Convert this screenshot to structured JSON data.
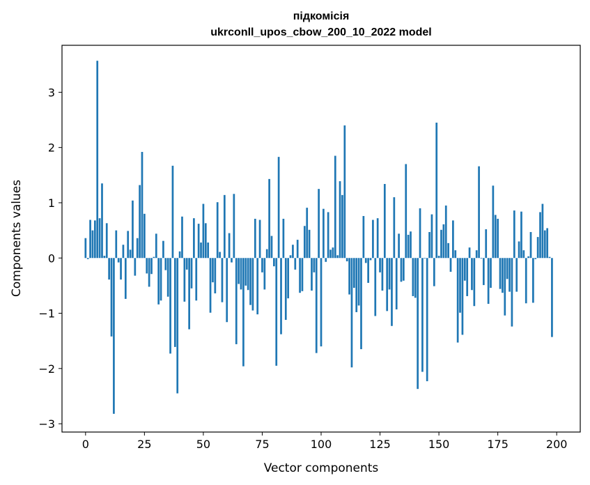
{
  "chart_data": {
    "type": "bar",
    "title_line1": "підкомісія",
    "title_line2": "ukrconll_upos_cbow_200_10_2022 model",
    "xlabel": "Vector components",
    "ylabel": "Components values",
    "xlim": [
      -10,
      210
    ],
    "ylim": [
      -3.15,
      3.85
    ],
    "xticks": [
      0,
      25,
      50,
      75,
      100,
      125,
      150,
      175,
      200
    ],
    "yticks": [
      -3,
      -2,
      -1,
      0,
      1,
      2,
      3
    ],
    "ytick_labels": [
      "−3",
      "−2",
      "−1",
      "0",
      "1",
      "2",
      "3"
    ],
    "bar_color": "#1f77b4",
    "grid": false,
    "values": [
      0.36,
      -0.02,
      0.69,
      0.5,
      0.68,
      3.57,
      0.72,
      1.35,
      0.04,
      0.63,
      -0.39,
      -1.42,
      -2.82,
      0.5,
      -0.08,
      -0.39,
      0.24,
      -0.74,
      0.49,
      0.15,
      1.04,
      -0.32,
      0.36,
      1.32,
      1.92,
      0.8,
      -0.28,
      -0.52,
      -0.29,
      0.02,
      0.44,
      -0.84,
      -0.77,
      0.31,
      -0.22,
      -0.7,
      -1.73,
      1.67,
      -1.61,
      -2.45,
      0.12,
      0.75,
      -0.79,
      -0.21,
      -1.29,
      -0.55,
      0.72,
      -0.77,
      0.62,
      0.28,
      0.98,
      0.63,
      0.28,
      -0.99,
      -0.44,
      -0.64,
      1.01,
      0.11,
      -0.8,
      1.14,
      -1.16,
      0.45,
      -0.08,
      1.16,
      -1.56,
      -0.47,
      -0.57,
      -1.96,
      -0.5,
      -0.58,
      -0.85,
      -0.95,
      0.71,
      -1.02,
      0.69,
      -0.26,
      -0.57,
      0.16,
      1.43,
      0.4,
      -0.15,
      -1.95,
      1.83,
      -1.38,
      0.71,
      -1.12,
      -0.73,
      0.05,
      0.24,
      -0.21,
      0.33,
      -0.63,
      -0.6,
      0.58,
      0.91,
      0.51,
      -0.59,
      -0.26,
      -1.72,
      1.25,
      -1.6,
      0.89,
      -0.07,
      0.83,
      0.15,
      0.19,
      1.85,
      0.05,
      1.39,
      1.14,
      2.4,
      -0.06,
      -0.66,
      -1.98,
      -0.54,
      -0.98,
      -0.86,
      -1.65,
      0.76,
      -0.09,
      -0.45,
      -0.04,
      0.69,
      -1.05,
      0.72,
      -0.26,
      -0.59,
      1.34,
      -0.96,
      -0.57,
      -1.23,
      1.1,
      -0.93,
      0.44,
      -0.43,
      -0.41,
      1.7,
      0.42,
      0.48,
      -0.69,
      -0.72,
      -2.37,
      0.9,
      -2.06,
      -0.01,
      -2.23,
      0.47,
      0.79,
      -0.51,
      2.45,
      0.04,
      0.51,
      0.61,
      0.95,
      0.27,
      -0.25,
      0.68,
      0.14,
      -1.53,
      -0.99,
      -1.39,
      -0.41,
      -0.69,
      0.19,
      -0.58,
      -0.87,
      0.14,
      1.66,
      -0.01,
      -0.49,
      0.52,
      -0.83,
      -0.54,
      1.31,
      0.78,
      0.71,
      -0.56,
      -0.63,
      -1.04,
      -0.38,
      -0.61,
      -1.24,
      0.86,
      -0.61,
      0.3,
      0.84,
      0.14,
      -0.82,
      0.03,
      0.47,
      -0.81,
      -0.02,
      0.38,
      0.83,
      0.98,
      0.5,
      0.54,
      0.02,
      -1.43,
      0.0
    ]
  }
}
